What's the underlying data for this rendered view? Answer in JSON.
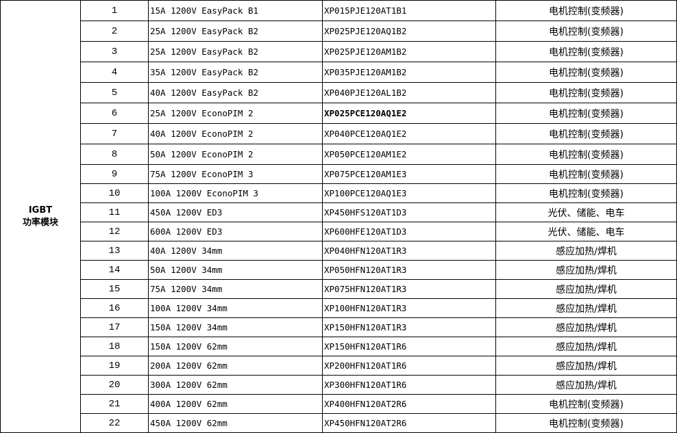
{
  "category": {
    "line1": "IGBT",
    "line2": "功率模块"
  },
  "rows": [
    {
      "no": "1",
      "model": "15A 1200V EasyPack B1",
      "code": "XP015PJE120AT1B1",
      "app": "电机控制(变频器)"
    },
    {
      "no": "2",
      "model": "25A 1200V EasyPack B2",
      "code": "XP025PJE120AQ1B2",
      "app": "电机控制(变频器)"
    },
    {
      "no": "3",
      "model": "25A 1200V EasyPack B2",
      "code": "XP025PJE120AM1B2",
      "app": "电机控制(变频器)"
    },
    {
      "no": "4",
      "model": "35A 1200V EasyPack B2",
      "code": "XP035PJE120AM1B2",
      "app": "电机控制(变频器)"
    },
    {
      "no": "5",
      "model": "40A 1200V EasyPack B2",
      "code": "XP040PJE120AL1B2",
      "app": "电机控制(变频器)"
    },
    {
      "no": "6",
      "model": "25A 1200V EconoPIM 2",
      "code": "XP025PCE120AQ1E2",
      "app": "电机控制(变频器)",
      "bold": true
    },
    {
      "no": "7",
      "model": "40A 1200V EconoPIM 2",
      "code": "XP040PCE120AQ1E2",
      "app": "电机控制(变频器)"
    },
    {
      "no": "8",
      "model": "50A 1200V EconoPIM 2",
      "code": "XP050PCE120AM1E2",
      "app": "电机控制(变频器)"
    },
    {
      "no": "9",
      "model": "75A 1200V EconoPIM 3",
      "code": "XP075PCE120AM1E3",
      "app": "电机控制(变频器)"
    },
    {
      "no": "10",
      "model": "100A 1200V EconoPIM 3",
      "code": "XP100PCE120AQ1E3",
      "app": "电机控制(变频器)"
    },
    {
      "no": "11",
      "model": "450A 1200V ED3",
      "code": "XP450HFS120AT1D3",
      "app": "光伏、储能、电车"
    },
    {
      "no": "12",
      "model": "600A 1200V ED3",
      "code": "XP600HFE120AT1D3",
      "app": "光伏、储能、电车"
    },
    {
      "no": "13",
      "model": "40A 1200V 34mm",
      "code": "XP040HFN120AT1R3",
      "app": "感应加热/焊机"
    },
    {
      "no": "14",
      "model": "50A 1200V 34mm",
      "code": "XP050HFN120AT1R3",
      "app": "感应加热/焊机"
    },
    {
      "no": "15",
      "model": "75A 1200V 34mm",
      "code": "XP075HFN120AT1R3",
      "app": "感应加热/焊机"
    },
    {
      "no": "16",
      "model": "100A 1200V 34mm",
      "code": "XP100HFN120AT1R3",
      "app": "感应加热/焊机"
    },
    {
      "no": "17",
      "model": "150A 1200V 34mm",
      "code": "XP150HFN120AT1R3",
      "app": "感应加热/焊机"
    },
    {
      "no": "18",
      "model": "150A 1200V 62mm",
      "code": "XP150HFN120AT1R6",
      "app": "感应加热/焊机"
    },
    {
      "no": "19",
      "model": "200A 1200V 62mm",
      "code": "XP200HFN120AT1R6",
      "app": "感应加热/焊机"
    },
    {
      "no": "20",
      "model": "300A 1200V 62mm",
      "code": "XP300HFN120AT1R6",
      "app": "感应加热/焊机"
    },
    {
      "no": "21",
      "model": "400A 1200V 62mm",
      "code": "XP400HFN120AT2R6",
      "app": "电机控制(变频器)"
    },
    {
      "no": "22",
      "model": "450A 1200V 62mm",
      "code": "XP450HFN120AT2R6",
      "app": "电机控制(变频器)"
    }
  ]
}
